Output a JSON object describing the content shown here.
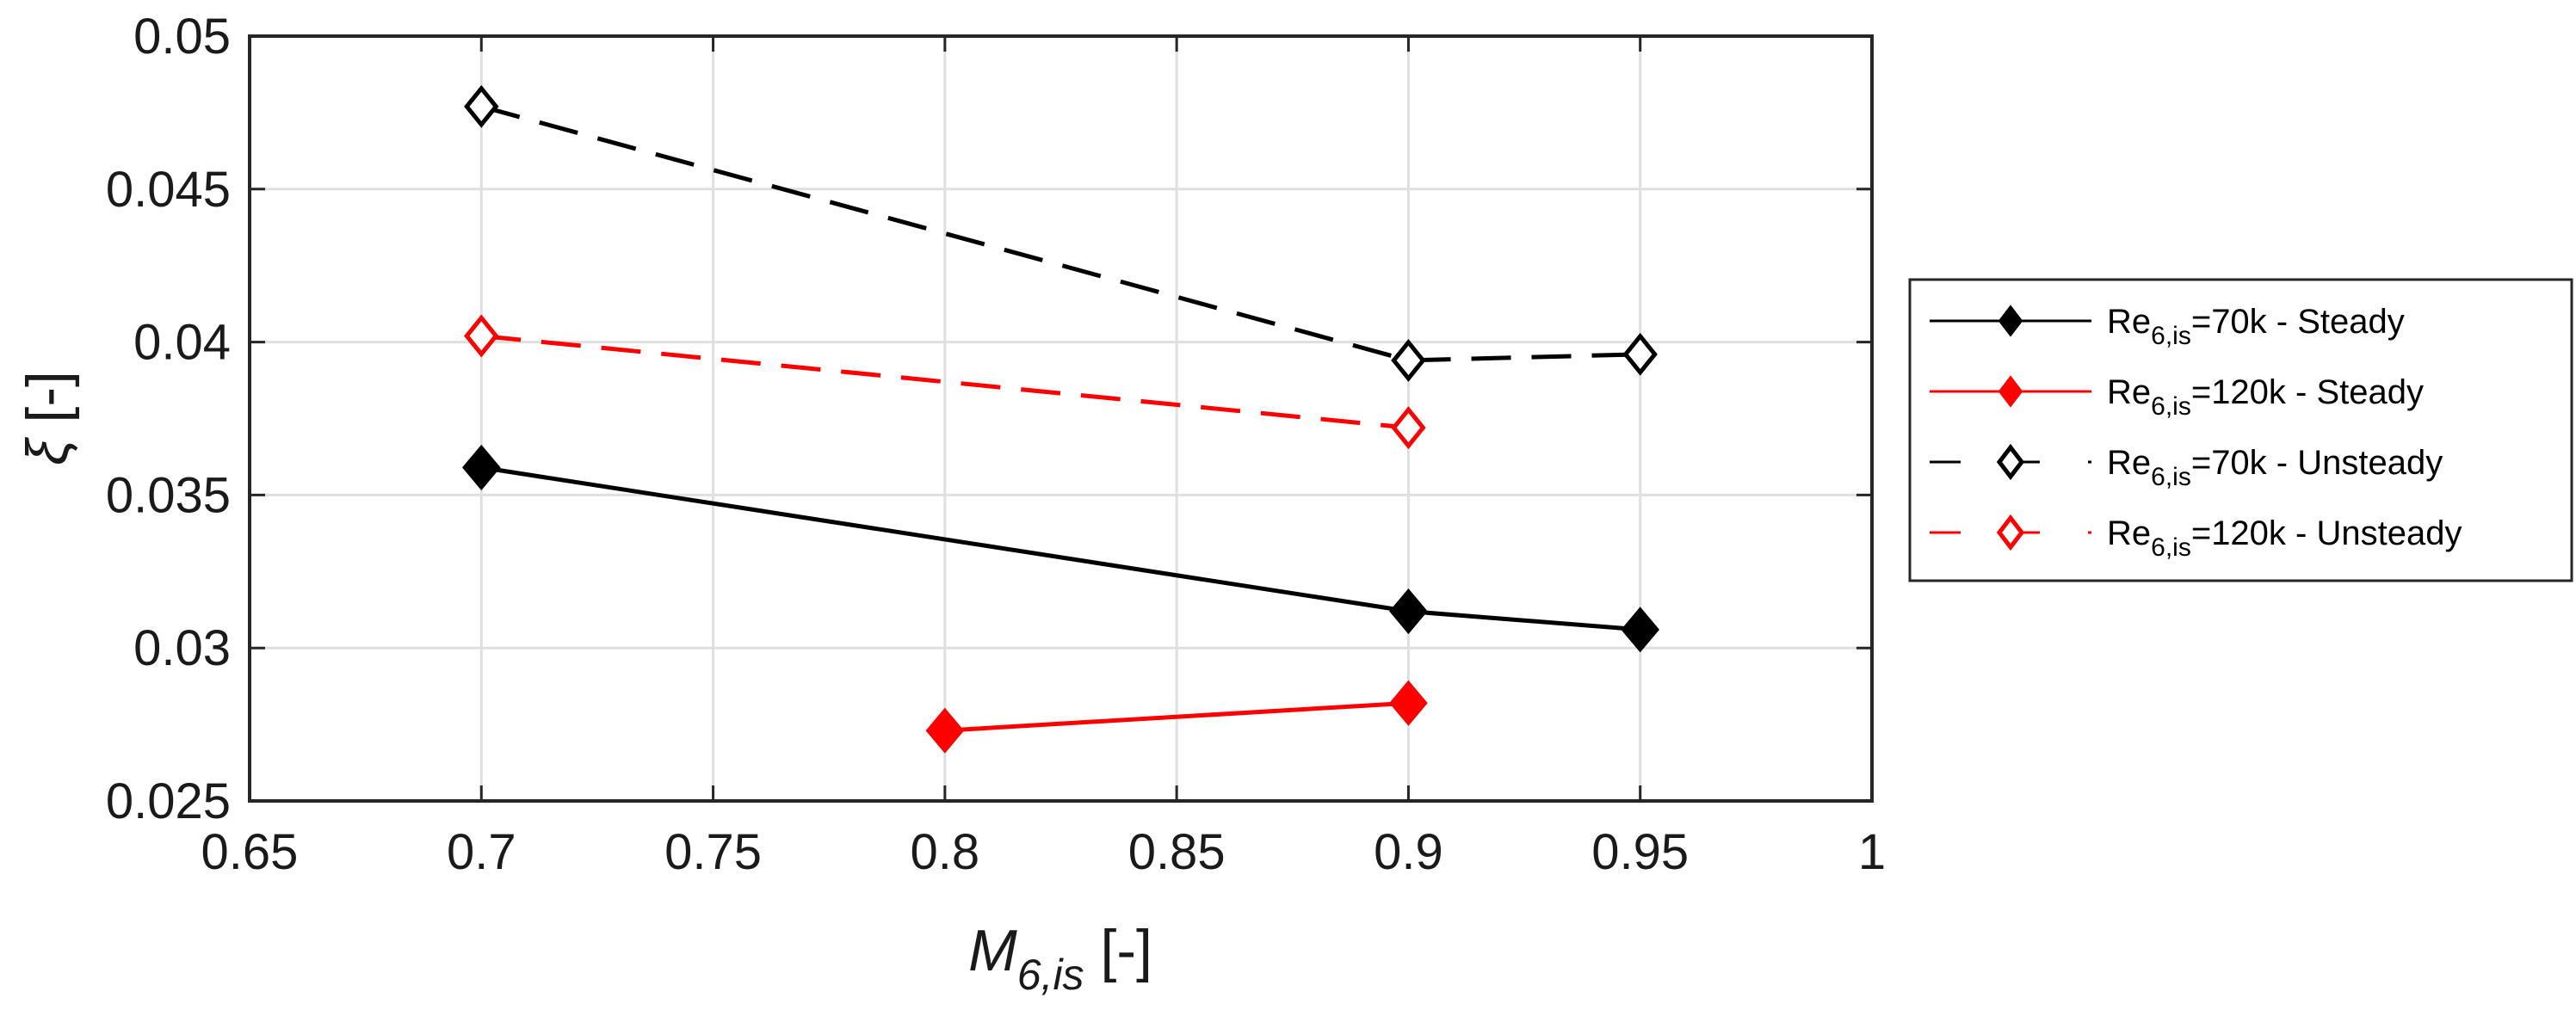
{
  "chart_data": {
    "type": "line",
    "title": "",
    "xlabel": {
      "symbol": "M",
      "subscript": "6,is",
      "unit": " [-]"
    },
    "ylabel": {
      "symbol": "ξ",
      "unit": " [-]"
    },
    "xlim": [
      0.65,
      1.0
    ],
    "ylim": [
      0.025,
      0.05
    ],
    "xticks": [
      0.65,
      0.7,
      0.75,
      0.8,
      0.85,
      0.9,
      0.95,
      1.0
    ],
    "yticks": [
      0.025,
      0.03,
      0.035,
      0.04,
      0.045,
      0.05
    ],
    "xtick_labels": [
      "0.65",
      "0.7",
      "0.75",
      "0.8",
      "0.85",
      "0.9",
      "0.95",
      "1"
    ],
    "ytick_labels": [
      "0.025",
      "0.03",
      "0.035",
      "0.04",
      "0.045",
      "0.05"
    ],
    "grid": true,
    "legend_position": "outside-right",
    "series": [
      {
        "name": "Re6,is=70k - Steady",
        "label_main": "Re",
        "label_sub": "6,is",
        "label_rest": "=70k - Steady",
        "color": "#000000",
        "linestyle": "solid",
        "marker": "diamond-filled",
        "x": [
          0.7,
          0.9,
          0.95
        ],
        "y": [
          0.0359,
          0.0312,
          0.0306
        ]
      },
      {
        "name": "Re6,is=120k - Steady",
        "label_main": "Re",
        "label_sub": "6,is",
        "label_rest": "=120k - Steady",
        "color": "#ff0000",
        "linestyle": "solid",
        "marker": "diamond-filled",
        "x": [
          0.8,
          0.9
        ],
        "y": [
          0.0273,
          0.0282
        ]
      },
      {
        "name": "Re6,is=70k - Unsteady",
        "label_main": "Re",
        "label_sub": "6,is",
        "label_rest": "=70k - Unsteady",
        "color": "#000000",
        "linestyle": "dashed",
        "marker": "diamond-open",
        "x": [
          0.7,
          0.9,
          0.95
        ],
        "y": [
          0.0477,
          0.0394,
          0.0396
        ]
      },
      {
        "name": "Re6,is=120k - Unsteady",
        "label_main": "Re",
        "label_sub": "6,is",
        "label_rest": "=120k - Unsteady",
        "color": "#ff0000",
        "linestyle": "dashed",
        "marker": "diamond-open",
        "x": [
          0.7,
          0.9
        ],
        "y": [
          0.0402,
          0.0372
        ]
      }
    ]
  }
}
